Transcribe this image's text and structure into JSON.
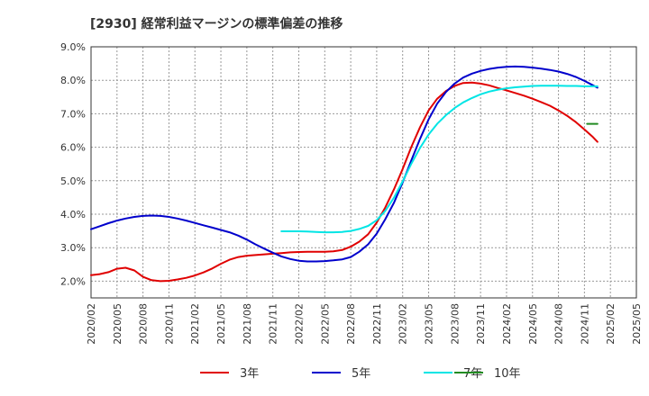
{
  "chart_data": {
    "type": "line",
    "title": "[2930]  経常利益マージンの標準偏差の推移",
    "xlabel": "",
    "ylabel": "",
    "ylim": [
      1.5,
      9.0
    ],
    "ytick_values": [
      2.0,
      3.0,
      4.0,
      5.0,
      6.0,
      7.0,
      8.0,
      9.0
    ],
    "ytick_labels": [
      "2.0%",
      "3.0%",
      "4.0%",
      "5.0%",
      "6.0%",
      "7.0%",
      "8.0%",
      "9.0%"
    ],
    "x_categories": [
      "2020/02",
      "2020/05",
      "2020/08",
      "2020/11",
      "2021/02",
      "2021/05",
      "2021/08",
      "2021/11",
      "2022/02",
      "2022/05",
      "2022/08",
      "2022/11",
      "2023/02",
      "2023/05",
      "2023/08",
      "2023/11",
      "2024/02",
      "2024/05",
      "2024/08",
      "2024/11",
      "2025/02",
      "2025/05"
    ],
    "grid": true,
    "legend_position": "bottom",
    "series": [
      {
        "name": "3年",
        "color": "#e00000",
        "points": [
          [
            0,
            2.18
          ],
          [
            0.33,
            2.21
          ],
          [
            0.67,
            2.27
          ],
          [
            1,
            2.37
          ],
          [
            1.33,
            2.4
          ],
          [
            1.67,
            2.32
          ],
          [
            2,
            2.13
          ],
          [
            2.33,
            2.03
          ],
          [
            2.67,
            2.0
          ],
          [
            3,
            2.01
          ],
          [
            3.33,
            2.05
          ],
          [
            3.67,
            2.1
          ],
          [
            4,
            2.17
          ],
          [
            4.33,
            2.26
          ],
          [
            4.67,
            2.38
          ],
          [
            5,
            2.52
          ],
          [
            5.33,
            2.64
          ],
          [
            5.67,
            2.72
          ],
          [
            6,
            2.76
          ],
          [
            6.33,
            2.78
          ],
          [
            6.67,
            2.8
          ],
          [
            7,
            2.82
          ],
          [
            7.33,
            2.84
          ],
          [
            7.67,
            2.86
          ],
          [
            8,
            2.87
          ],
          [
            8.33,
            2.88
          ],
          [
            8.67,
            2.88
          ],
          [
            9,
            2.88
          ],
          [
            9.33,
            2.89
          ],
          [
            9.67,
            2.93
          ],
          [
            10,
            3.03
          ],
          [
            10.33,
            3.18
          ],
          [
            10.67,
            3.4
          ],
          [
            11,
            3.75
          ],
          [
            11.33,
            4.2
          ],
          [
            11.67,
            4.75
          ],
          [
            12,
            5.35
          ],
          [
            12.33,
            6.0
          ],
          [
            12.67,
            6.6
          ],
          [
            13,
            7.1
          ],
          [
            13.33,
            7.45
          ],
          [
            13.67,
            7.68
          ],
          [
            14,
            7.83
          ],
          [
            14.33,
            7.92
          ],
          [
            14.67,
            7.93
          ],
          [
            15,
            7.9
          ],
          [
            15.33,
            7.85
          ],
          [
            15.67,
            7.77
          ],
          [
            16,
            7.7
          ],
          [
            16.33,
            7.62
          ],
          [
            16.67,
            7.54
          ],
          [
            17,
            7.45
          ],
          [
            17.33,
            7.35
          ],
          [
            17.67,
            7.24
          ],
          [
            18,
            7.1
          ],
          [
            18.33,
            6.94
          ],
          [
            18.67,
            6.75
          ],
          [
            19,
            6.53
          ],
          [
            19.33,
            6.3
          ],
          [
            19.5,
            6.16
          ]
        ]
      },
      {
        "name": "5年",
        "color": "#0000cc",
        "points": [
          [
            0,
            3.55
          ],
          [
            0.33,
            3.64
          ],
          [
            0.67,
            3.73
          ],
          [
            1,
            3.81
          ],
          [
            1.33,
            3.87
          ],
          [
            1.67,
            3.92
          ],
          [
            2,
            3.95
          ],
          [
            2.33,
            3.96
          ],
          [
            2.67,
            3.95
          ],
          [
            3,
            3.92
          ],
          [
            3.33,
            3.87
          ],
          [
            3.67,
            3.81
          ],
          [
            4,
            3.74
          ],
          [
            4.33,
            3.67
          ],
          [
            4.67,
            3.6
          ],
          [
            5,
            3.53
          ],
          [
            5.33,
            3.46
          ],
          [
            5.67,
            3.36
          ],
          [
            6,
            3.24
          ],
          [
            6.33,
            3.1
          ],
          [
            6.67,
            2.97
          ],
          [
            7,
            2.85
          ],
          [
            7.33,
            2.74
          ],
          [
            7.67,
            2.66
          ],
          [
            8,
            2.61
          ],
          [
            8.33,
            2.59
          ],
          [
            8.67,
            2.59
          ],
          [
            9,
            2.6
          ],
          [
            9.33,
            2.62
          ],
          [
            9.67,
            2.65
          ],
          [
            10,
            2.72
          ],
          [
            10.33,
            2.88
          ],
          [
            10.67,
            3.1
          ],
          [
            11,
            3.42
          ],
          [
            11.33,
            3.85
          ],
          [
            11.67,
            4.35
          ],
          [
            12,
            4.95
          ],
          [
            12.33,
            5.6
          ],
          [
            12.67,
            6.25
          ],
          [
            13,
            6.83
          ],
          [
            13.33,
            7.3
          ],
          [
            13.67,
            7.65
          ],
          [
            14,
            7.9
          ],
          [
            14.33,
            8.08
          ],
          [
            14.67,
            8.2
          ],
          [
            15,
            8.28
          ],
          [
            15.33,
            8.34
          ],
          [
            15.67,
            8.38
          ],
          [
            16,
            8.4
          ],
          [
            16.33,
            8.41
          ],
          [
            16.67,
            8.4
          ],
          [
            17,
            8.38
          ],
          [
            17.33,
            8.35
          ],
          [
            17.67,
            8.31
          ],
          [
            18,
            8.26
          ],
          [
            18.33,
            8.19
          ],
          [
            18.67,
            8.1
          ],
          [
            19,
            7.98
          ],
          [
            19.33,
            7.85
          ],
          [
            19.5,
            7.78
          ]
        ]
      },
      {
        "name": "7年",
        "color": "#00e5e5",
        "points": [
          [
            7.33,
            3.49
          ],
          [
            7.67,
            3.49
          ],
          [
            8,
            3.49
          ],
          [
            8.33,
            3.48
          ],
          [
            8.67,
            3.47
          ],
          [
            9,
            3.46
          ],
          [
            9.33,
            3.46
          ],
          [
            9.67,
            3.47
          ],
          [
            10,
            3.5
          ],
          [
            10.33,
            3.56
          ],
          [
            10.67,
            3.65
          ],
          [
            11,
            3.82
          ],
          [
            11.33,
            4.1
          ],
          [
            11.67,
            4.5
          ],
          [
            12,
            4.98
          ],
          [
            12.33,
            5.5
          ],
          [
            12.67,
            5.98
          ],
          [
            13,
            6.38
          ],
          [
            13.33,
            6.7
          ],
          [
            13.67,
            6.96
          ],
          [
            14,
            7.17
          ],
          [
            14.33,
            7.34
          ],
          [
            14.67,
            7.47
          ],
          [
            15,
            7.58
          ],
          [
            15.33,
            7.66
          ],
          [
            15.67,
            7.72
          ],
          [
            16,
            7.76
          ],
          [
            16.33,
            7.79
          ],
          [
            16.67,
            7.81
          ],
          [
            17,
            7.83
          ],
          [
            17.33,
            7.84
          ],
          [
            17.67,
            7.84
          ],
          [
            18,
            7.84
          ],
          [
            18.33,
            7.83
          ],
          [
            18.67,
            7.83
          ],
          [
            19,
            7.82
          ],
          [
            19.33,
            7.82
          ],
          [
            19.5,
            7.82
          ]
        ]
      },
      {
        "name": "10年",
        "color": "#228b22",
        "points": [
          [
            19.1,
            6.7
          ],
          [
            19.5,
            6.7
          ]
        ]
      }
    ]
  }
}
